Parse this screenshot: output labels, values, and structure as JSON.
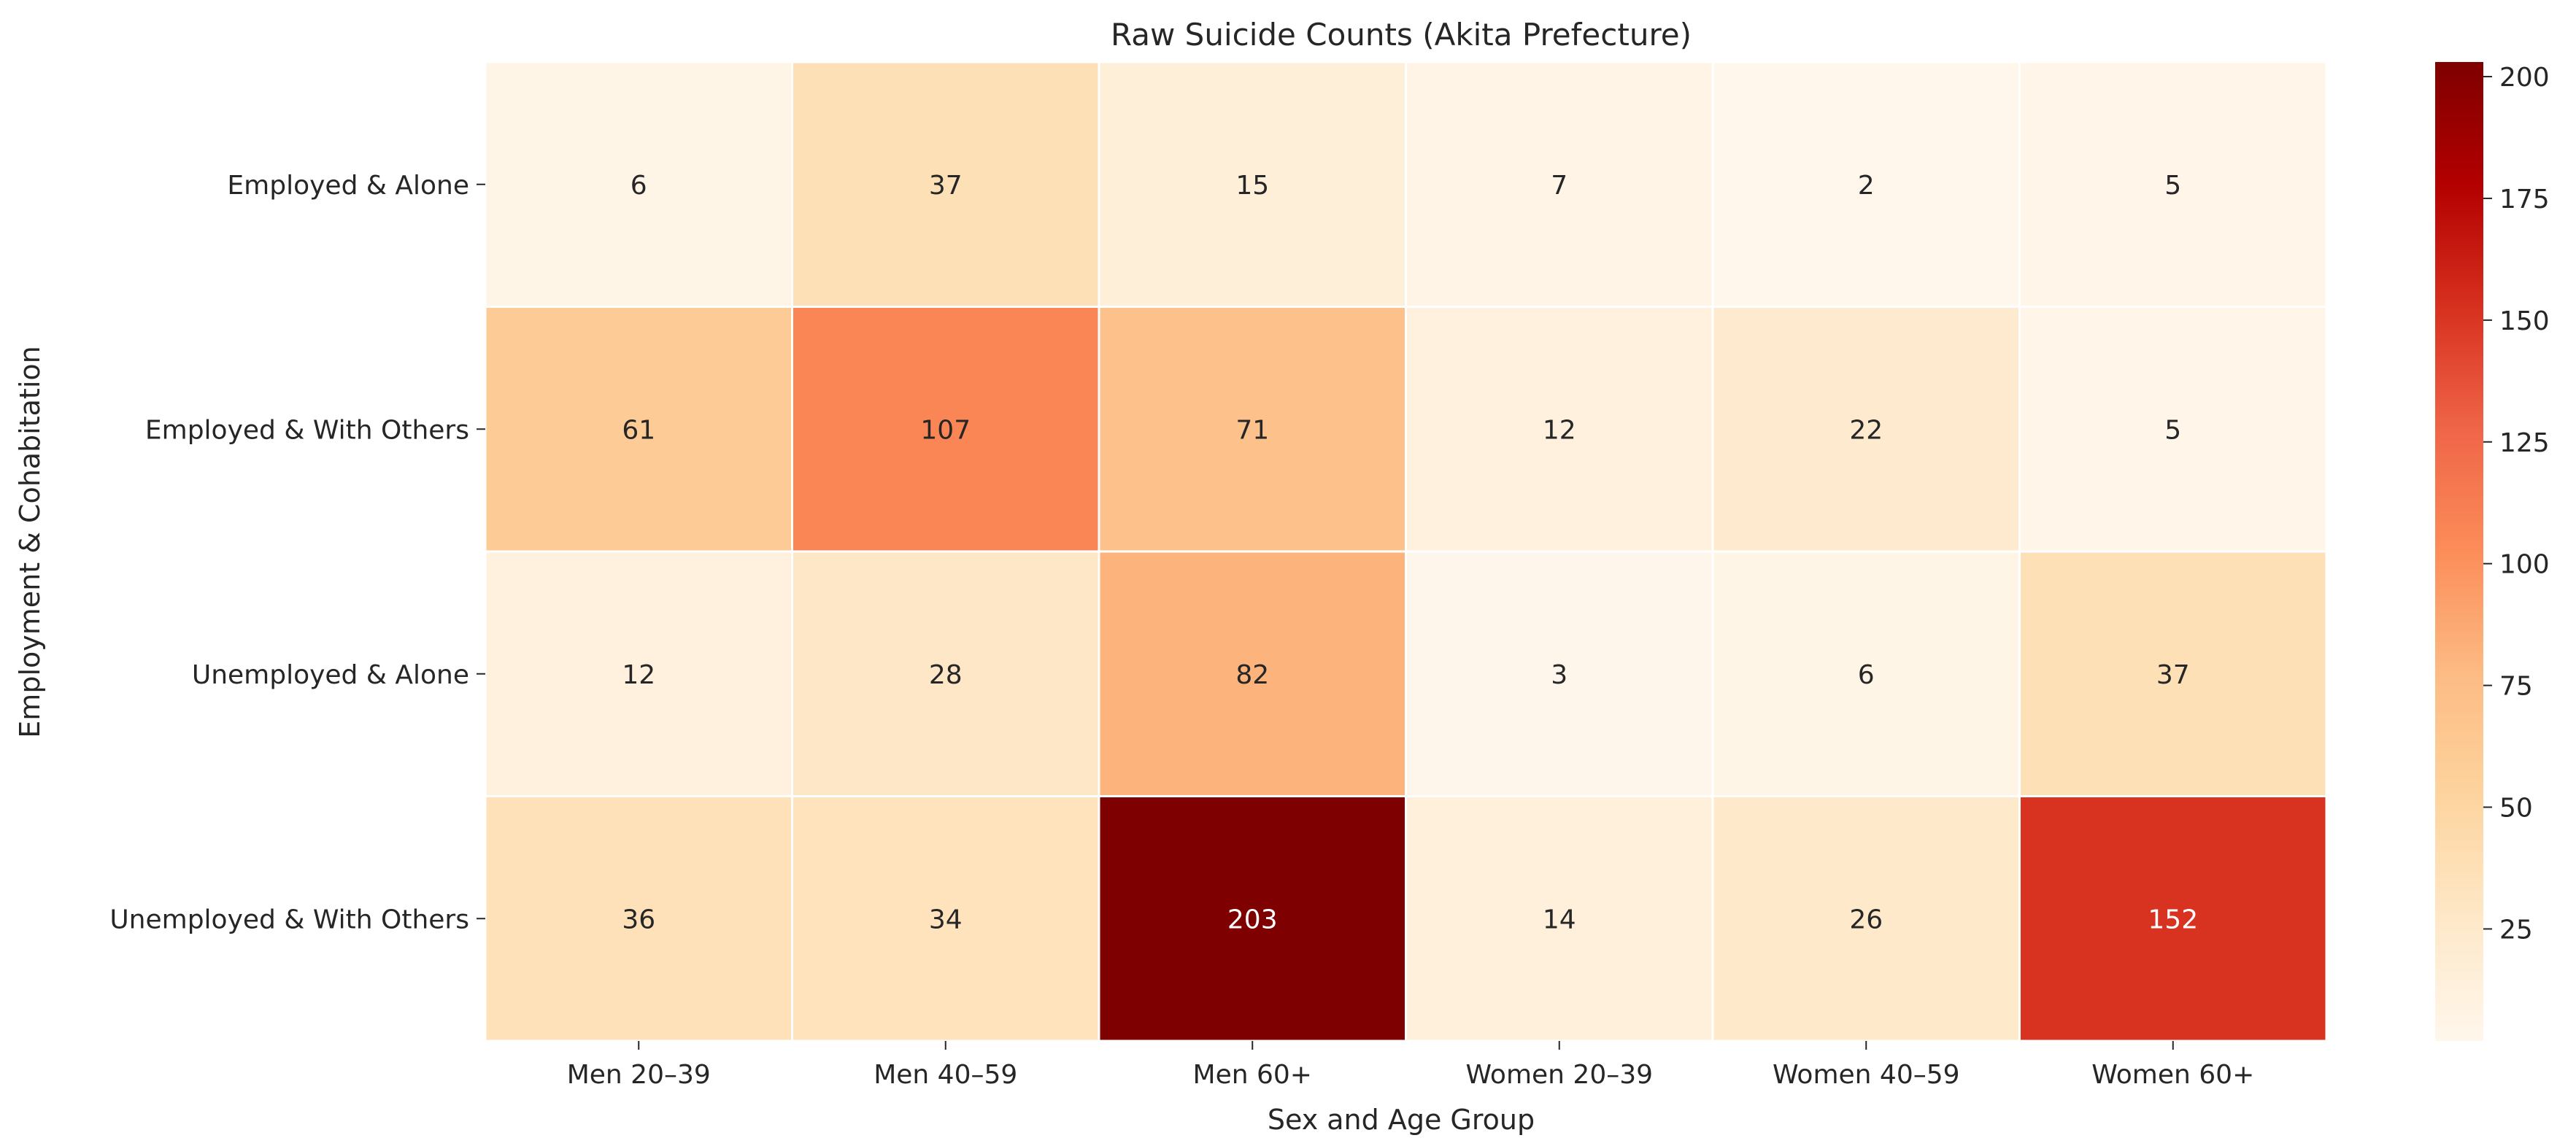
{
  "chart_data": {
    "type": "heatmap",
    "title": "Raw Suicide Counts (Akita Prefecture)",
    "xlabel": "Sex and Age Group",
    "ylabel": "Employment & Cohabitation",
    "x_categories": [
      "Men 20–39",
      "Men 40–59",
      "Men 60+",
      "Women 20–39",
      "Women 40–59",
      "Women 60+"
    ],
    "y_categories": [
      "Employed & Alone",
      "Employed & With Others",
      "Unemployed & Alone",
      "Unemployed & With Others"
    ],
    "values": [
      [
        6,
        37,
        15,
        7,
        2,
        5
      ],
      [
        61,
        107,
        71,
        12,
        22,
        5
      ],
      [
        12,
        28,
        82,
        3,
        6,
        37
      ],
      [
        36,
        34,
        203,
        14,
        26,
        152
      ]
    ],
    "colormap": "OrRd",
    "colormap_stops": [
      "#fff7ec",
      "#fee8c8",
      "#fdd49e",
      "#fdbb84",
      "#fc8d59",
      "#ef6548",
      "#d7301f",
      "#b30000",
      "#7f0000"
    ],
    "vmin": 2,
    "vmax": 203,
    "colorbar_ticks": [
      25,
      50,
      75,
      100,
      125,
      150,
      175,
      200
    ],
    "annot_light_color": "#ffffff",
    "annot_dark_color": "#262626",
    "gridline_color": "#ffffff"
  }
}
